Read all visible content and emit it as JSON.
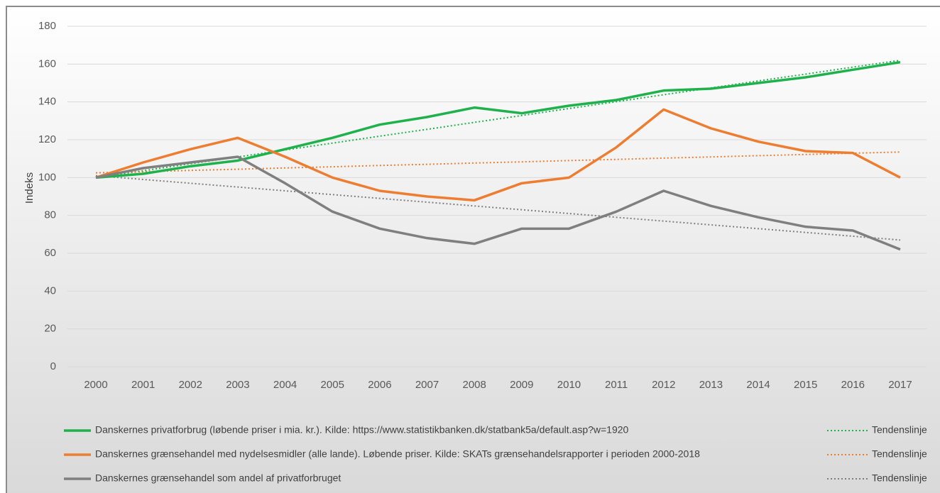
{
  "chart_data": {
    "type": "line",
    "y_label": "Indeks",
    "categories": [
      "2000",
      "2001",
      "2002",
      "2003",
      "2004",
      "2005",
      "2006",
      "2007",
      "2008",
      "2009",
      "2010",
      "2011",
      "2012",
      "2013",
      "2014",
      "2015",
      "2016",
      "2017"
    ],
    "series": [
      {
        "name": "Danskernes privatforbrug (løbende priser i mia. kr.). Kilde: https://www.statistikbanken.dk/statbank5a/default.asp?w=1920",
        "color": "#1fb14c",
        "line_style": "solid",
        "values": [
          100,
          102,
          106,
          109,
          115,
          121,
          128,
          132,
          137,
          134,
          138,
          141,
          146,
          147,
          150,
          153,
          157,
          161
        ]
      },
      {
        "name": "Danskernes grænsehandel med nydelsesmidler (alle lande). Løbende priser. Kilde: SKATs grænsehandelsrapporter i perioden 2000-2018",
        "color": "#ed7d31",
        "line_style": "solid",
        "values": [
          100,
          108,
          115,
          121,
          111,
          100,
          93,
          90,
          88,
          97,
          100,
          116,
          136,
          126,
          119,
          114,
          113,
          100
        ]
      },
      {
        "name": "Danskernes grænsehandel som andel af privatforbruget",
        "color": "#7f7f7f",
        "line_style": "solid",
        "values": [
          100,
          105,
          108,
          111,
          97,
          82,
          73,
          68,
          65,
          73,
          73,
          82,
          93,
          85,
          79,
          74,
          72,
          62
        ]
      },
      {
        "name": "Tendenslinje",
        "color": "#1fb14c",
        "line_style": "dotted",
        "values": [
          100,
          103.6,
          107.3,
          110.9,
          114.6,
          118.2,
          121.9,
          125.5,
          129.2,
          132.8,
          136.5,
          140.1,
          143.8,
          147.4,
          151.1,
          154.7,
          158.4,
          162
        ]
      },
      {
        "name": "Tendenslinje",
        "color": "#ed7d31",
        "line_style": "dotted",
        "values": [
          102.5,
          103.1,
          103.8,
          104.4,
          105.1,
          105.7,
          106.4,
          107,
          107.7,
          108.3,
          109,
          109.6,
          110.3,
          110.9,
          111.6,
          112.2,
          112.9,
          113.5
        ]
      },
      {
        "name": "Tendenslinje",
        "color": "#7f7f7f",
        "line_style": "dotted",
        "values": [
          101,
          99,
          97,
          95,
          93,
          91,
          89,
          87,
          85,
          83,
          81,
          79,
          77,
          75,
          73,
          71,
          69,
          67
        ]
      }
    ],
    "ylim": [
      0,
      180
    ],
    "yticks": [
      0,
      20,
      40,
      60,
      80,
      100,
      120,
      140,
      160,
      180
    ],
    "grid": true
  }
}
